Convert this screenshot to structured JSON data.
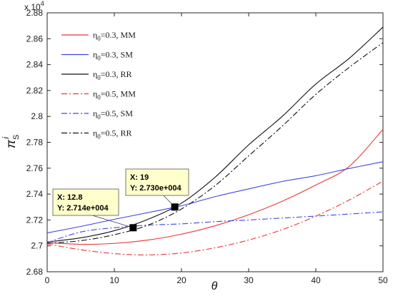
{
  "chart_data": {
    "type": "line",
    "xlabel": "θ",
    "ylabel": {
      "base": "π",
      "sub": "S",
      "sup": "i"
    },
    "exponent_label": {
      "prefix": "x 10",
      "power": "4"
    },
    "xlim": [
      0,
      50
    ],
    "ylim": [
      2.68,
      2.88
    ],
    "y_scale": 10000,
    "xticks": [
      "0",
      "10",
      "20",
      "30",
      "40",
      "50"
    ],
    "yticks": [
      "2.68",
      "2.7",
      "2.72",
      "2.74",
      "2.76",
      "2.78",
      "2.8",
      "2.82",
      "2.84",
      "2.86",
      "2.88"
    ],
    "grid": false,
    "legend_position": "top-left",
    "x": [
      0,
      5,
      10,
      15,
      20,
      25,
      30,
      35,
      40,
      45,
      50
    ],
    "series": [
      {
        "name": "η0=0.3, MM",
        "legend": {
          "eta": "η",
          "sub": "0",
          "rest": "=0.3, MM"
        },
        "color": "#e8363a",
        "dash": "solid",
        "values": [
          27025,
          27012,
          27019,
          27045,
          27090,
          27155,
          27240,
          27345,
          27470,
          27615,
          27900
        ]
      },
      {
        "name": "η0=0.3, SM",
        "legend": {
          "eta": "η",
          "sub": "0",
          "rest": "=0.3, SM"
        },
        "color": "#3f48e0",
        "dash": "solid",
        "values": [
          27100,
          27150,
          27205,
          27257,
          27310,
          27380,
          27440,
          27497,
          27542,
          27598,
          27650
        ]
      },
      {
        "name": "η0=0.3, RR",
        "legend": {
          "eta": "η",
          "sub": "0",
          "rest": "=0.3, RR"
        },
        "color": "#111111",
        "dash": "solid",
        "values": [
          27030,
          27062,
          27117,
          27205,
          27330,
          27530,
          27780,
          28000,
          28250,
          28450,
          28690
        ]
      },
      {
        "name": "η0=0.5, MM",
        "legend": {
          "eta": "η",
          "sub": "0",
          "rest": "=0.5, MM"
        },
        "color": "#e8363a",
        "dash": "dashdot",
        "values": [
          27015,
          26970,
          26940,
          26930,
          26945,
          26985,
          27045,
          27125,
          27230,
          27355,
          27500
        ]
      },
      {
        "name": "η0=0.5, SM",
        "legend": {
          "eta": "η",
          "sub": "0",
          "rest": "=0.5, SM"
        },
        "color": "#3f48e0",
        "dash": "dashdot",
        "values": [
          27025,
          27107,
          27140,
          27160,
          27170,
          27187,
          27200,
          27215,
          27230,
          27246,
          27263
        ]
      },
      {
        "name": "η0=0.5, RR",
        "legend": {
          "eta": "η",
          "sub": "0",
          "rest": "=0.5, RR"
        },
        "color": "#111111",
        "dash": "dashdot",
        "values": [
          27020,
          27040,
          27086,
          27160,
          27285,
          27465,
          27695,
          27925,
          28170,
          28380,
          28570
        ]
      }
    ],
    "datatips": [
      {
        "x": 12.8,
        "y": 27140,
        "label_x": "X: 12.8",
        "label_y": "Y: 2.714e+004"
      },
      {
        "x": 19,
        "y": 27300,
        "label_x": "X: 19",
        "label_y": "Y: 2.730e+004"
      }
    ],
    "colors": {
      "axis": "#262626",
      "tip_fill": "#ffffcc",
      "tip_border": "#555555"
    }
  }
}
